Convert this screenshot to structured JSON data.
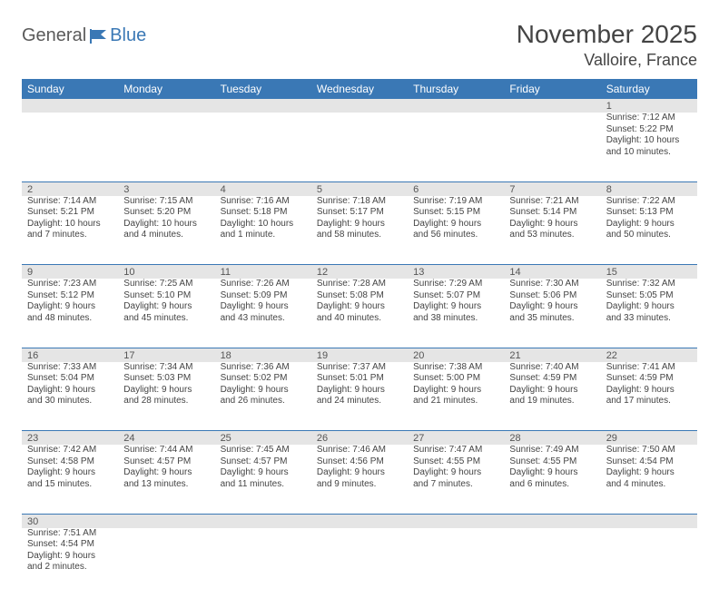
{
  "logo": {
    "part1": "General",
    "part2": "Blue"
  },
  "title": "November 2025",
  "location": "Valloire, France",
  "colors": {
    "header_bg": "#3a78b5",
    "header_text": "#ffffff",
    "daynum_bg": "#e5e5e5",
    "cell_border": "#3a78b5",
    "text": "#444444"
  },
  "day_names": [
    "Sunday",
    "Monday",
    "Tuesday",
    "Wednesday",
    "Thursday",
    "Friday",
    "Saturday"
  ],
  "weeks": [
    [
      null,
      null,
      null,
      null,
      null,
      null,
      {
        "n": "1",
        "sunrise": "Sunrise: 7:12 AM",
        "sunset": "Sunset: 5:22 PM",
        "day1": "Daylight: 10 hours",
        "day2": "and 10 minutes."
      }
    ],
    [
      {
        "n": "2",
        "sunrise": "Sunrise: 7:14 AM",
        "sunset": "Sunset: 5:21 PM",
        "day1": "Daylight: 10 hours",
        "day2": "and 7 minutes."
      },
      {
        "n": "3",
        "sunrise": "Sunrise: 7:15 AM",
        "sunset": "Sunset: 5:20 PM",
        "day1": "Daylight: 10 hours",
        "day2": "and 4 minutes."
      },
      {
        "n": "4",
        "sunrise": "Sunrise: 7:16 AM",
        "sunset": "Sunset: 5:18 PM",
        "day1": "Daylight: 10 hours",
        "day2": "and 1 minute."
      },
      {
        "n": "5",
        "sunrise": "Sunrise: 7:18 AM",
        "sunset": "Sunset: 5:17 PM",
        "day1": "Daylight: 9 hours",
        "day2": "and 58 minutes."
      },
      {
        "n": "6",
        "sunrise": "Sunrise: 7:19 AM",
        "sunset": "Sunset: 5:15 PM",
        "day1": "Daylight: 9 hours",
        "day2": "and 56 minutes."
      },
      {
        "n": "7",
        "sunrise": "Sunrise: 7:21 AM",
        "sunset": "Sunset: 5:14 PM",
        "day1": "Daylight: 9 hours",
        "day2": "and 53 minutes."
      },
      {
        "n": "8",
        "sunrise": "Sunrise: 7:22 AM",
        "sunset": "Sunset: 5:13 PM",
        "day1": "Daylight: 9 hours",
        "day2": "and 50 minutes."
      }
    ],
    [
      {
        "n": "9",
        "sunrise": "Sunrise: 7:23 AM",
        "sunset": "Sunset: 5:12 PM",
        "day1": "Daylight: 9 hours",
        "day2": "and 48 minutes."
      },
      {
        "n": "10",
        "sunrise": "Sunrise: 7:25 AM",
        "sunset": "Sunset: 5:10 PM",
        "day1": "Daylight: 9 hours",
        "day2": "and 45 minutes."
      },
      {
        "n": "11",
        "sunrise": "Sunrise: 7:26 AM",
        "sunset": "Sunset: 5:09 PM",
        "day1": "Daylight: 9 hours",
        "day2": "and 43 minutes."
      },
      {
        "n": "12",
        "sunrise": "Sunrise: 7:28 AM",
        "sunset": "Sunset: 5:08 PM",
        "day1": "Daylight: 9 hours",
        "day2": "and 40 minutes."
      },
      {
        "n": "13",
        "sunrise": "Sunrise: 7:29 AM",
        "sunset": "Sunset: 5:07 PM",
        "day1": "Daylight: 9 hours",
        "day2": "and 38 minutes."
      },
      {
        "n": "14",
        "sunrise": "Sunrise: 7:30 AM",
        "sunset": "Sunset: 5:06 PM",
        "day1": "Daylight: 9 hours",
        "day2": "and 35 minutes."
      },
      {
        "n": "15",
        "sunrise": "Sunrise: 7:32 AM",
        "sunset": "Sunset: 5:05 PM",
        "day1": "Daylight: 9 hours",
        "day2": "and 33 minutes."
      }
    ],
    [
      {
        "n": "16",
        "sunrise": "Sunrise: 7:33 AM",
        "sunset": "Sunset: 5:04 PM",
        "day1": "Daylight: 9 hours",
        "day2": "and 30 minutes."
      },
      {
        "n": "17",
        "sunrise": "Sunrise: 7:34 AM",
        "sunset": "Sunset: 5:03 PM",
        "day1": "Daylight: 9 hours",
        "day2": "and 28 minutes."
      },
      {
        "n": "18",
        "sunrise": "Sunrise: 7:36 AM",
        "sunset": "Sunset: 5:02 PM",
        "day1": "Daylight: 9 hours",
        "day2": "and 26 minutes."
      },
      {
        "n": "19",
        "sunrise": "Sunrise: 7:37 AM",
        "sunset": "Sunset: 5:01 PM",
        "day1": "Daylight: 9 hours",
        "day2": "and 24 minutes."
      },
      {
        "n": "20",
        "sunrise": "Sunrise: 7:38 AM",
        "sunset": "Sunset: 5:00 PM",
        "day1": "Daylight: 9 hours",
        "day2": "and 21 minutes."
      },
      {
        "n": "21",
        "sunrise": "Sunrise: 7:40 AM",
        "sunset": "Sunset: 4:59 PM",
        "day1": "Daylight: 9 hours",
        "day2": "and 19 minutes."
      },
      {
        "n": "22",
        "sunrise": "Sunrise: 7:41 AM",
        "sunset": "Sunset: 4:59 PM",
        "day1": "Daylight: 9 hours",
        "day2": "and 17 minutes."
      }
    ],
    [
      {
        "n": "23",
        "sunrise": "Sunrise: 7:42 AM",
        "sunset": "Sunset: 4:58 PM",
        "day1": "Daylight: 9 hours",
        "day2": "and 15 minutes."
      },
      {
        "n": "24",
        "sunrise": "Sunrise: 7:44 AM",
        "sunset": "Sunset: 4:57 PM",
        "day1": "Daylight: 9 hours",
        "day2": "and 13 minutes."
      },
      {
        "n": "25",
        "sunrise": "Sunrise: 7:45 AM",
        "sunset": "Sunset: 4:57 PM",
        "day1": "Daylight: 9 hours",
        "day2": "and 11 minutes."
      },
      {
        "n": "26",
        "sunrise": "Sunrise: 7:46 AM",
        "sunset": "Sunset: 4:56 PM",
        "day1": "Daylight: 9 hours",
        "day2": "and 9 minutes."
      },
      {
        "n": "27",
        "sunrise": "Sunrise: 7:47 AM",
        "sunset": "Sunset: 4:55 PM",
        "day1": "Daylight: 9 hours",
        "day2": "and 7 minutes."
      },
      {
        "n": "28",
        "sunrise": "Sunrise: 7:49 AM",
        "sunset": "Sunset: 4:55 PM",
        "day1": "Daylight: 9 hours",
        "day2": "and 6 minutes."
      },
      {
        "n": "29",
        "sunrise": "Sunrise: 7:50 AM",
        "sunset": "Sunset: 4:54 PM",
        "day1": "Daylight: 9 hours",
        "day2": "and 4 minutes."
      }
    ],
    [
      {
        "n": "30",
        "sunrise": "Sunrise: 7:51 AM",
        "sunset": "Sunset: 4:54 PM",
        "day1": "Daylight: 9 hours",
        "day2": "and 2 minutes."
      },
      null,
      null,
      null,
      null,
      null,
      null
    ]
  ]
}
